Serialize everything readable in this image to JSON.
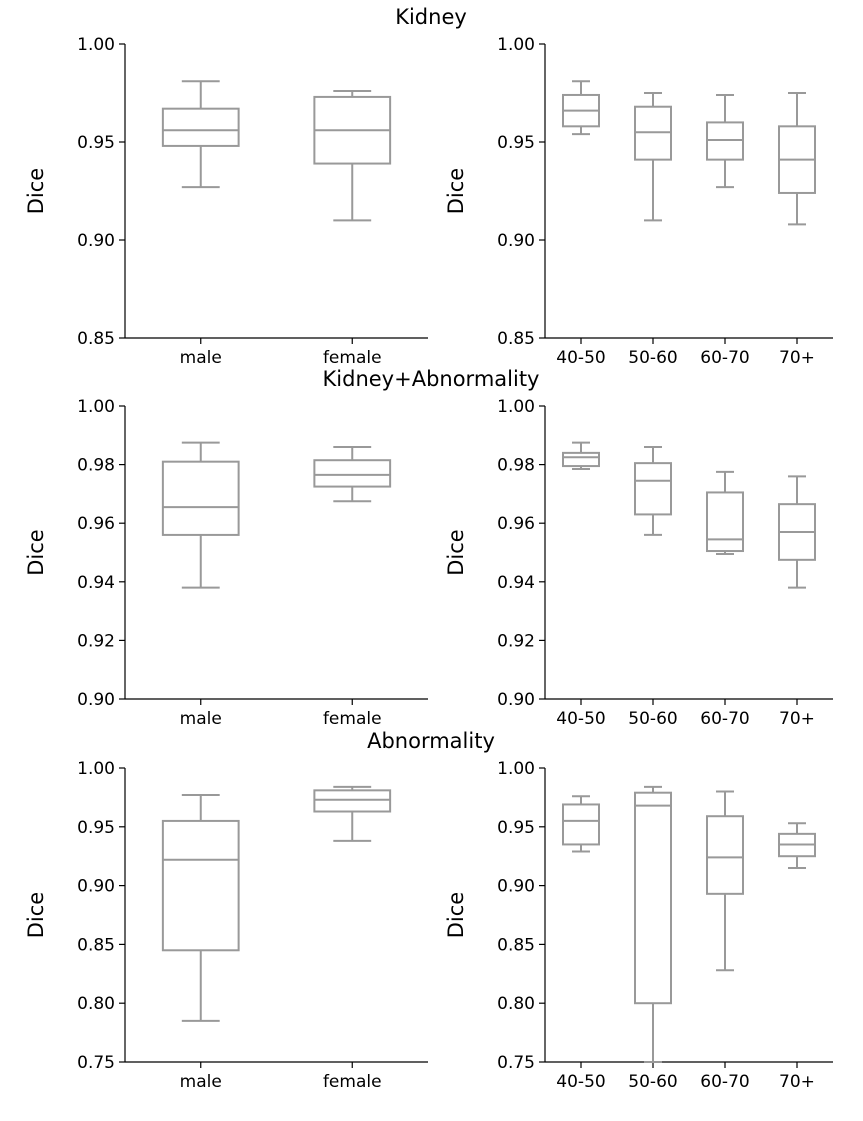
{
  "chart_data": [
    {
      "type": "box",
      "row_title": "Kidney",
      "ylabel": "Dice",
      "ylim": [
        0.85,
        1.0
      ],
      "yticks": [
        "0.85",
        "0.90",
        "0.95",
        "1.00"
      ],
      "categories": [
        "male",
        "female"
      ],
      "boxes": [
        {
          "whislo": 0.927,
          "q1": 0.948,
          "med": 0.956,
          "q3": 0.967,
          "whishi": 0.981
        },
        {
          "whislo": 0.91,
          "q1": 0.939,
          "med": 0.956,
          "q3": 0.973,
          "whishi": 0.976
        }
      ]
    },
    {
      "type": "box",
      "ylabel": "Dice",
      "ylim": [
        0.85,
        1.0
      ],
      "yticks": [
        "0.85",
        "0.90",
        "0.95",
        "1.00"
      ],
      "categories": [
        "40-50",
        "50-60",
        "60-70",
        "70+"
      ],
      "boxes": [
        {
          "whislo": 0.954,
          "q1": 0.958,
          "med": 0.966,
          "q3": 0.974,
          "whishi": 0.981
        },
        {
          "whislo": 0.91,
          "q1": 0.941,
          "med": 0.955,
          "q3": 0.968,
          "whishi": 0.975
        },
        {
          "whislo": 0.927,
          "q1": 0.941,
          "med": 0.951,
          "q3": 0.96,
          "whishi": 0.974
        },
        {
          "whislo": 0.908,
          "q1": 0.924,
          "med": 0.941,
          "q3": 0.958,
          "whishi": 0.975
        }
      ]
    },
    {
      "type": "box",
      "row_title": "Kidney+Abnormality",
      "ylabel": "Dice",
      "ylim": [
        0.9,
        1.0
      ],
      "yticks": [
        "0.90",
        "0.92",
        "0.94",
        "0.96",
        "0.98",
        "1.00"
      ],
      "categories": [
        "male",
        "female"
      ],
      "boxes": [
        {
          "whislo": 0.938,
          "q1": 0.956,
          "med": 0.9655,
          "q3": 0.981,
          "whishi": 0.9875
        },
        {
          "whislo": 0.9675,
          "q1": 0.9725,
          "med": 0.9765,
          "q3": 0.9815,
          "whishi": 0.986
        }
      ]
    },
    {
      "type": "box",
      "ylabel": "Dice",
      "ylim": [
        0.9,
        1.0
      ],
      "yticks": [
        "0.90",
        "0.92",
        "0.94",
        "0.96",
        "0.98",
        "1.00"
      ],
      "categories": [
        "40-50",
        "50-60",
        "60-70",
        "70+"
      ],
      "boxes": [
        {
          "whislo": 0.9785,
          "q1": 0.9795,
          "med": 0.9825,
          "q3": 0.984,
          "whishi": 0.9875
        },
        {
          "whislo": 0.956,
          "q1": 0.963,
          "med": 0.9745,
          "q3": 0.9805,
          "whishi": 0.986
        },
        {
          "whislo": 0.9495,
          "q1": 0.9505,
          "med": 0.9545,
          "q3": 0.9705,
          "whishi": 0.9775
        },
        {
          "whislo": 0.938,
          "q1": 0.9475,
          "med": 0.957,
          "q3": 0.9665,
          "whishi": 0.976
        }
      ]
    },
    {
      "type": "box",
      "row_title": "Abnormality",
      "ylabel": "Dice",
      "ylim": [
        0.75,
        1.0
      ],
      "yticks": [
        "0.75",
        "0.80",
        "0.85",
        "0.90",
        "0.95",
        "1.00"
      ],
      "categories": [
        "male",
        "female"
      ],
      "boxes": [
        {
          "whislo": 0.785,
          "q1": 0.845,
          "med": 0.922,
          "q3": 0.955,
          "whishi": 0.977
        },
        {
          "whislo": 0.938,
          "q1": 0.963,
          "med": 0.973,
          "q3": 0.981,
          "whishi": 0.984
        }
      ]
    },
    {
      "type": "box",
      "ylabel": "Dice",
      "ylim": [
        0.75,
        1.0
      ],
      "yticks": [
        "0.75",
        "0.80",
        "0.85",
        "0.90",
        "0.95",
        "1.00"
      ],
      "categories": [
        "40-50",
        "50-60",
        "60-70",
        "70+"
      ],
      "boxes": [
        {
          "whislo": 0.929,
          "q1": 0.935,
          "med": 0.955,
          "q3": 0.969,
          "whishi": 0.976
        },
        {
          "whislo": 0.75,
          "q1": 0.8,
          "med": 0.968,
          "q3": 0.979,
          "whishi": 0.984
        },
        {
          "whislo": 0.828,
          "q1": 0.893,
          "med": 0.924,
          "q3": 0.959,
          "whishi": 0.98
        },
        {
          "whislo": 0.915,
          "q1": 0.925,
          "med": 0.935,
          "q3": 0.944,
          "whishi": 0.953
        }
      ]
    }
  ]
}
